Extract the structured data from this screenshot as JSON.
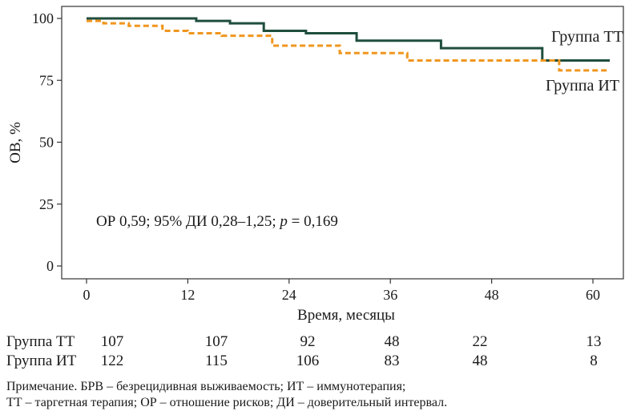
{
  "chart_data": {
    "type": "line",
    "step": true,
    "title": "",
    "xlabel": "Время, месяцы",
    "ylabel": "ОВ, %",
    "xlim": [
      0,
      62
    ],
    "ylim": [
      0,
      100
    ],
    "x_ticks": [
      "0",
      "12",
      "24",
      "36",
      "48",
      "60"
    ],
    "y_ticks": [
      "0",
      "25",
      "50",
      "75",
      "100"
    ],
    "series": [
      {
        "name": "Группа ТТ",
        "color": "#1f4e3d",
        "style": "solid",
        "x": [
          0,
          13,
          17,
          21,
          26,
          32,
          42,
          54,
          62
        ],
        "y": [
          100,
          99,
          98,
          95,
          94,
          91,
          88,
          83,
          83
        ]
      },
      {
        "name": "Группа ИТ",
        "color": "#f0961e",
        "style": "dashed",
        "x": [
          0,
          2,
          5,
          9,
          12,
          16,
          22,
          30,
          38,
          56,
          62
        ],
        "y": [
          99,
          98,
          97,
          95,
          94,
          93,
          89,
          86,
          83,
          79,
          79
        ]
      }
    ],
    "annotation": {
      "prefix": "ОР 0,59; 95% ДИ 0,28–1,25; ",
      "p_symbol": "p",
      "p_value": " = 0,169"
    },
    "risk_table": {
      "rows": [
        {
          "label": "Группа ТТ",
          "values": [
            "107",
            "107",
            "92",
            "48",
            "22",
            "13"
          ]
        },
        {
          "label": "Группа ИТ",
          "values": [
            "122",
            "115",
            "106",
            "83",
            "48",
            "8"
          ]
        }
      ]
    }
  },
  "note": {
    "line1": "Примечание. БРВ – безрецидивная выживаемость; ИТ – иммунотерапия;",
    "line2": "ТТ – таргетная терапия; ОР – отношение рисков; ДИ – доверительный интервал."
  }
}
